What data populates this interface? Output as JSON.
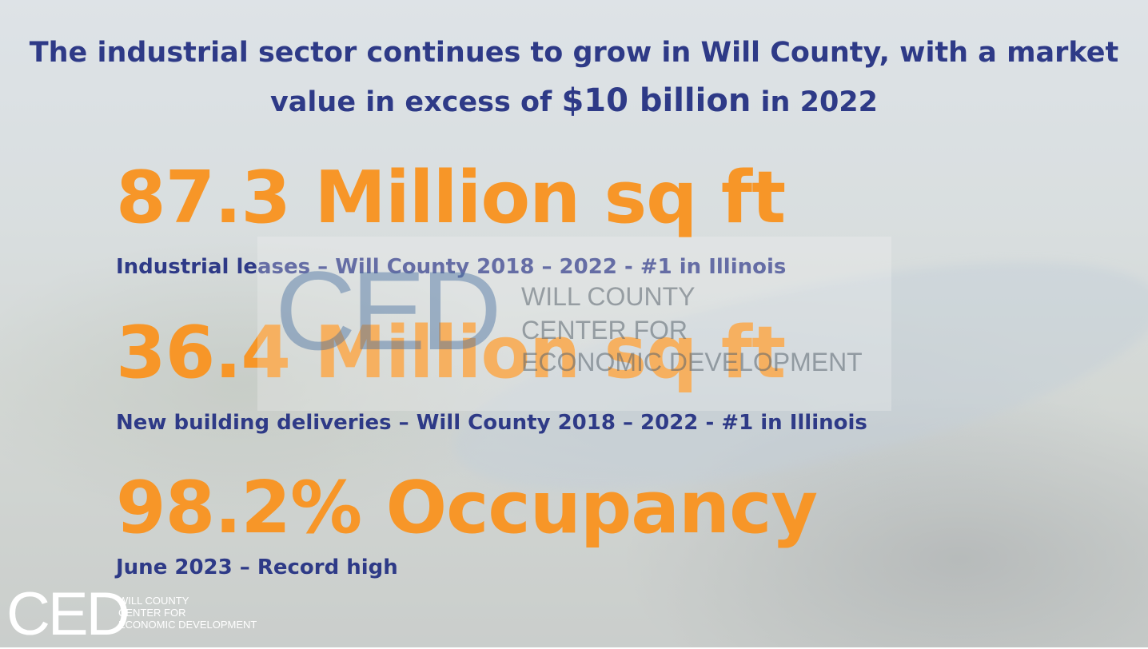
{
  "headline": {
    "line1": "The industrial sector continues to grow in Will County, with a market",
    "line2_pre": "value in excess of ",
    "line2_big": "$10 billion",
    "line2_post": " in 2022"
  },
  "stats": [
    {
      "value": "87.3 Million sq ft",
      "caption": "Industrial leases – Will County 2018 – 2022 - #1 in Illinois"
    },
    {
      "value": "36.4 Million sq ft",
      "caption": "New building deliveries – Will County 2018 – 2022 - #1 in Illinois"
    },
    {
      "value": "98.2% Occupancy",
      "caption": "June 2023 – Record high"
    }
  ],
  "watermark": {
    "mark": "CED",
    "line1": "WILL COUNTY",
    "line2": "CENTER FOR",
    "line3": "ECONOMIC DEVELOPMENT"
  },
  "logo": {
    "mark": "CED",
    "line1": "WILL COUNTY",
    "line2": "CENTER FOR",
    "line3": "ECONOMIC DEVELOPMENT"
  },
  "colors": {
    "headline": "#2e3a87",
    "stat_accent": "#f79628",
    "caption": "#2e3a87"
  }
}
